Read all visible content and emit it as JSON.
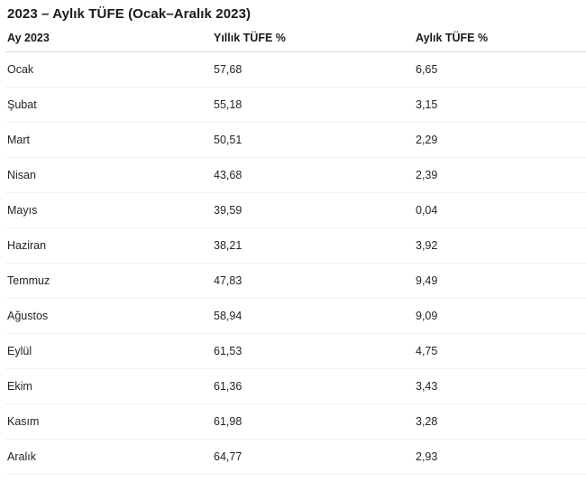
{
  "page": {
    "title": "2023 – Aylık TÜFE (Ocak–Aralık 2023)"
  },
  "table": {
    "columns": [
      "Ay 2023",
      "Yıllık TÜFE %",
      "Aylık TÜFE %"
    ],
    "rows": [
      {
        "month": "Ocak",
        "yearly": "57,68",
        "monthly": "6,65"
      },
      {
        "month": "Şubat",
        "yearly": "55,18",
        "monthly": "3,15"
      },
      {
        "month": "Mart",
        "yearly": "50,51",
        "monthly": "2,29"
      },
      {
        "month": "Nisan",
        "yearly": "43,68",
        "monthly": "2,39"
      },
      {
        "month": "Mayıs",
        "yearly": "39,59",
        "monthly": "0,04"
      },
      {
        "month": "Haziran",
        "yearly": "38,21",
        "monthly": "3,92"
      },
      {
        "month": "Temmuz",
        "yearly": "47,83",
        "monthly": "9,49"
      },
      {
        "month": "Ağustos",
        "yearly": "58,94",
        "monthly": "9,09"
      },
      {
        "month": "Eylül",
        "yearly": "61,53",
        "monthly": "4,75"
      },
      {
        "month": "Ekim",
        "yearly": "61,36",
        "monthly": "3,43"
      },
      {
        "month": "Kasım",
        "yearly": "61,98",
        "monthly": "3,28"
      },
      {
        "month": "Aralık",
        "yearly": "64,77",
        "monthly": "2,93"
      }
    ]
  },
  "chart_data": {
    "type": "table",
    "title": "2023 – Aylık TÜFE (Ocak–Aralık 2023)",
    "categories": [
      "Ocak",
      "Şubat",
      "Mart",
      "Nisan",
      "Mayıs",
      "Haziran",
      "Temmuz",
      "Ağustos",
      "Eylül",
      "Ekim",
      "Kasım",
      "Aralık"
    ],
    "series": [
      {
        "name": "Yıllık TÜFE %",
        "values": [
          57.68,
          55.18,
          50.51,
          43.68,
          39.59,
          38.21,
          47.83,
          58.94,
          61.53,
          61.36,
          61.98,
          64.77
        ]
      },
      {
        "name": "Aylık TÜFE %",
        "values": [
          6.65,
          3.15,
          2.29,
          2.39,
          0.04,
          3.92,
          9.49,
          9.09,
          4.75,
          3.43,
          3.28,
          2.93
        ]
      }
    ],
    "xlabel": "Ay 2023",
    "ylabel": "TÜFE %"
  },
  "colors": {
    "background": "#ffffff",
    "title_text": "#1a1a1a",
    "header_text": "#1a1a1a",
    "cell_text": "#242424",
    "header_divider": "#d8d8d8",
    "row_divider": "#f0f0f0"
  }
}
